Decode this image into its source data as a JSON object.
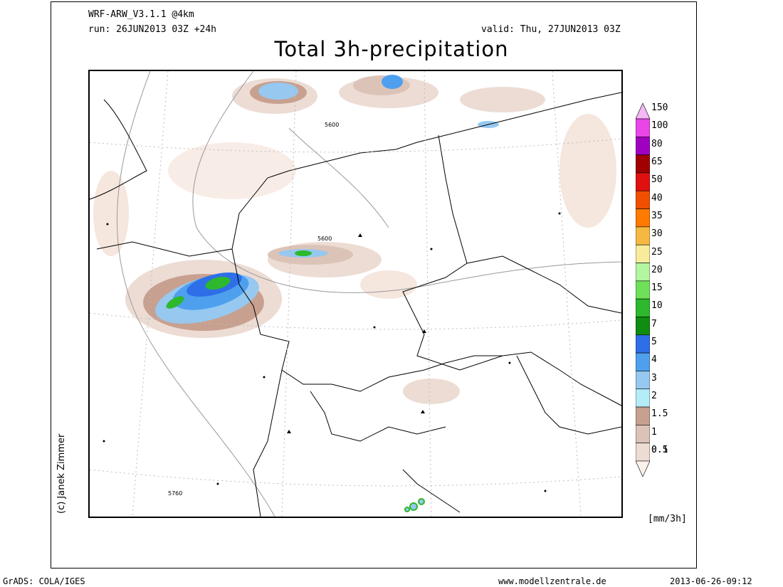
{
  "header": {
    "model": "WRF-ARW_V3.1.1 @4km",
    "run": "run: 26JUN2013 03Z +24h",
    "valid": "valid: Thu, 27JUN2013 03Z",
    "title": "Total 3h-precipitation"
  },
  "legend": {
    "units": "[mm/3h]",
    "levels": [
      {
        "label": "150",
        "color": "#f5b8f5"
      },
      {
        "label": "100",
        "color": "#e846e8"
      },
      {
        "label": "80",
        "color": "#a000c0"
      },
      {
        "label": "65",
        "color": "#a00000"
      },
      {
        "label": "50",
        "color": "#e01010"
      },
      {
        "label": "40",
        "color": "#f05000"
      },
      {
        "label": "35",
        "color": "#ff7a00"
      },
      {
        "label": "30",
        "color": "#f5b942"
      },
      {
        "label": "25",
        "color": "#f8ec9c"
      },
      {
        "label": "20",
        "color": "#b4f5a0"
      },
      {
        "label": "15",
        "color": "#6ee05a"
      },
      {
        "label": "10",
        "color": "#2db82d"
      },
      {
        "label": "7",
        "color": "#108c10"
      },
      {
        "label": "5",
        "color": "#2e6fe8"
      },
      {
        "label": "4",
        "color": "#4ea0ef"
      },
      {
        "label": "3",
        "color": "#96c8f0"
      },
      {
        "label": "2",
        "color": "#b4ecf8"
      },
      {
        "label": "1.5",
        "color": "#c8a090"
      },
      {
        "label": "1",
        "color": "#dcc3b8"
      },
      {
        "label": "0.5",
        "color": "#ecdcd4"
      },
      {
        "label": "0.1",
        "color": "#fbf0ea"
      }
    ]
  },
  "map": {
    "contour_labels": [
      "5600",
      "5600",
      "5760"
    ]
  },
  "author": "(c) Janek Zimmer",
  "footer": {
    "grads": "GrADS: COLA/IGES",
    "site": "www.modellzentrale.de",
    "timestamp": "2013-06-26-09:12"
  }
}
